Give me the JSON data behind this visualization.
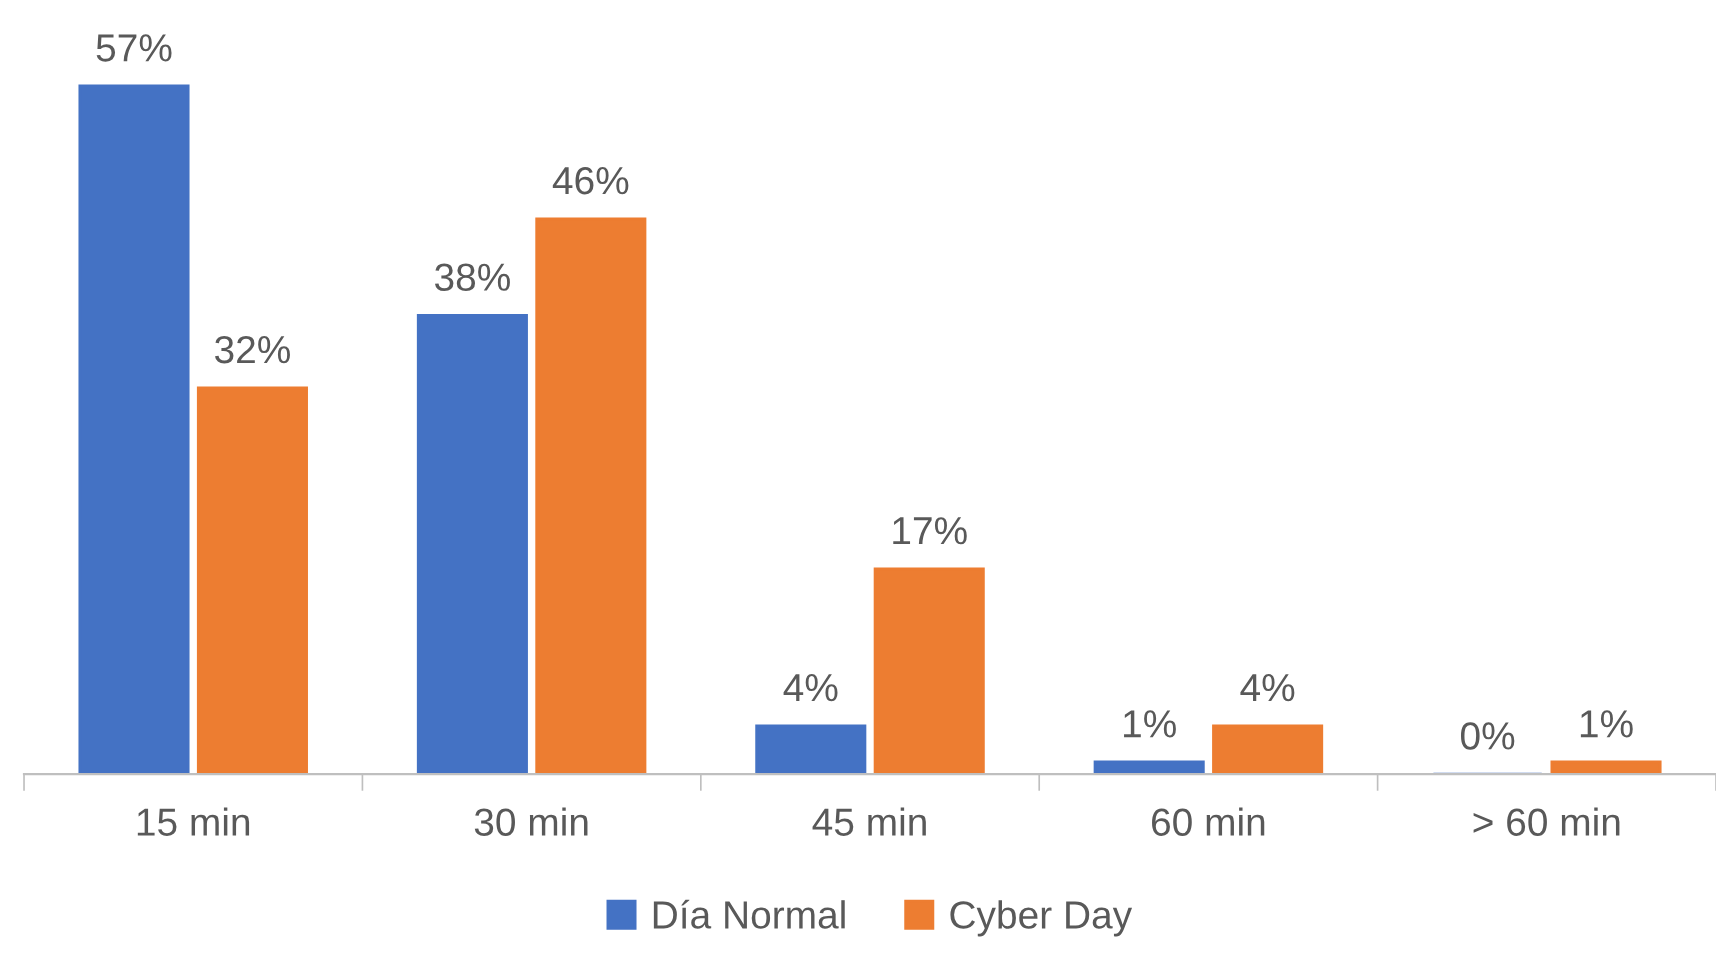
{
  "chart_data": {
    "type": "bar",
    "categories": [
      "15 min",
      "30 min",
      "45 min",
      "60 min",
      "> 60 min"
    ],
    "series": [
      {
        "name": "Día Normal",
        "color": "#4472c4",
        "values": [
          57,
          38,
          4,
          1,
          0
        ],
        "value_labels": [
          "57%",
          "38%",
          "4%",
          "1%",
          "0%"
        ]
      },
      {
        "name": "Cyber Day",
        "color": "#ed7d31",
        "values": [
          32,
          46,
          17,
          4,
          1
        ],
        "value_labels": [
          "32%",
          "46%",
          "17%",
          "4%",
          "1%"
        ]
      }
    ],
    "legend": "bottom"
  }
}
